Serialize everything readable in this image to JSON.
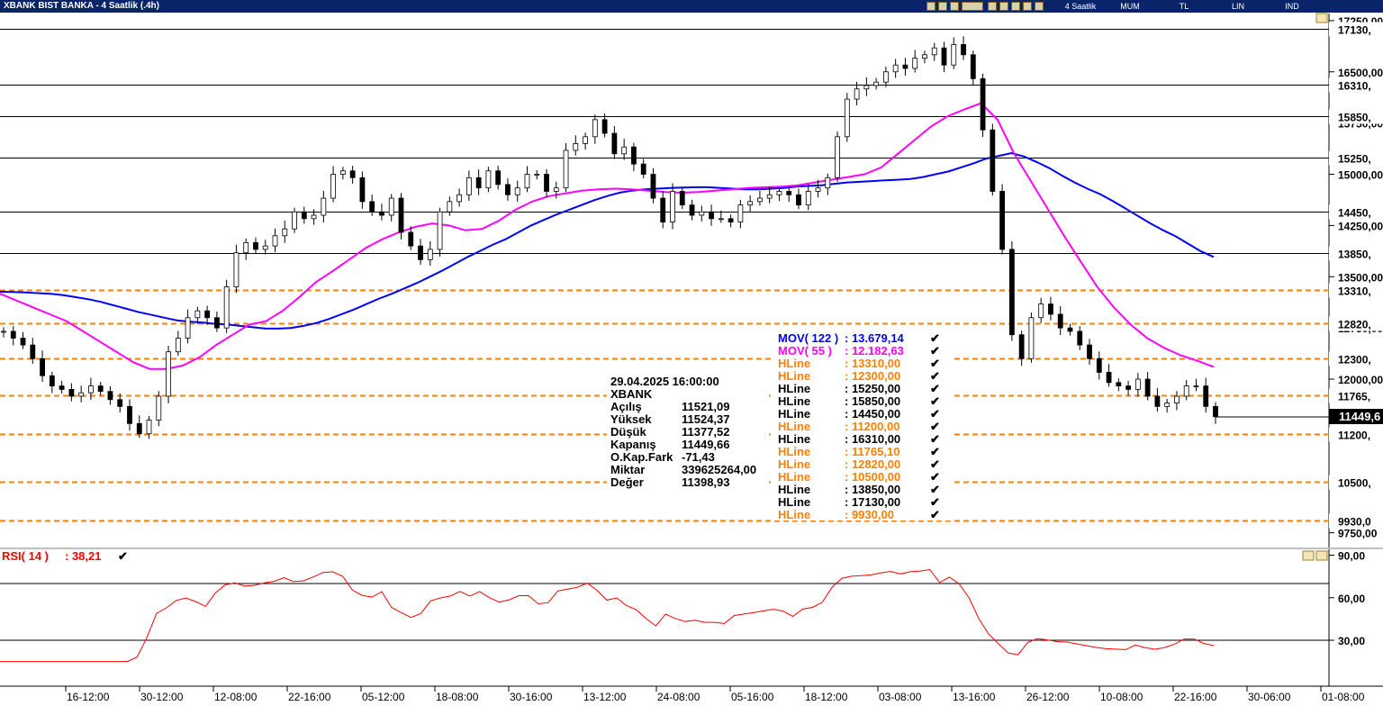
{
  "window": {
    "title": "XBANK BIST BANKA - 4 Saatlik (.4h)",
    "toolbar_labels": [
      "4 Saatlik",
      "MUM",
      "TL",
      "LIN",
      "IND"
    ]
  },
  "info_box": {
    "datetime": "29.04.2025  16:00:00",
    "symbol": "XBANK",
    "rows": [
      {
        "label": "Açılış",
        "value": "11521,09"
      },
      {
        "label": "Yüksek",
        "value": "11524,37"
      },
      {
        "label": "Düşük",
        "value": "11377,52"
      },
      {
        "label": "Kapanış",
        "value": "11449,66"
      },
      {
        "label": "O.Kap.Fark",
        "value": "-71,43"
      },
      {
        "label": "Miktar",
        "value": "339625264,00"
      },
      {
        "label": "Değer",
        "value": "11398,93"
      }
    ]
  },
  "legend": [
    {
      "name": "MOV( 122 )",
      "value": ": 13.679,14",
      "color": "#0000ff"
    },
    {
      "name": "MOV( 55 )",
      "value": ": 12.182,63",
      "color": "#ff00ff"
    },
    {
      "name": "HLine",
      "value": ": 13310,00",
      "color": "#ff8000"
    },
    {
      "name": "HLine",
      "value": ": 12300,00",
      "color": "#ff8000"
    },
    {
      "name": "HLine",
      "value": ": 15250,00",
      "color": "#000000"
    },
    {
      "name": "HLine",
      "value": ": 15850,00",
      "color": "#000000"
    },
    {
      "name": "HLine",
      "value": ": 14450,00",
      "color": "#000000"
    },
    {
      "name": "HLine",
      "value": ": 11200,00",
      "color": "#ff8000"
    },
    {
      "name": "HLine",
      "value": ": 16310,00",
      "color": "#000000"
    },
    {
      "name": "HLine",
      "value": ": 11765,10",
      "color": "#ff8000"
    },
    {
      "name": "HLine",
      "value": ": 12820,00",
      "color": "#ff8000"
    },
    {
      "name": "HLine",
      "value": ": 10500,00",
      "color": "#ff8000"
    },
    {
      "name": "HLine",
      "value": ": 13850,00",
      "color": "#000000"
    },
    {
      "name": "HLine",
      "value": ": 17130,00",
      "color": "#000000"
    },
    {
      "name": "HLine",
      "value": ": 9930,00",
      "color": "#ff8000"
    }
  ],
  "rsi": {
    "label": "RSI( 14 )",
    "value": ": 38,21",
    "color": "#ff0000"
  },
  "chart_data": {
    "type": "candlestick",
    "price_ticks": [
      "17250,00",
      "16500,00",
      "15750,00",
      "15000,00",
      "14250,00",
      "13500,00",
      "12750,00",
      "12000,00",
      "9750,00"
    ],
    "rsi_ticks": [
      "90,00",
      "60,00",
      "30,00"
    ],
    "x_ticks": [
      "16-12:00",
      "30-12:00",
      "12-08:00",
      "22-16:00",
      "05-12:00",
      "18-08:00",
      "30-16:00",
      "13-12:00",
      "24-08:00",
      "05-16:00",
      "18-12:00",
      "03-08:00",
      "13-16:00",
      "26-12:00",
      "10-08:00",
      "22-16:00",
      "30-06:00",
      "01-08:00"
    ],
    "hlines": [
      {
        "label": "17130,",
        "value": 17130,
        "color": "#000000",
        "style": "solid"
      },
      {
        "label": "16310,",
        "value": 16310,
        "color": "#000000",
        "style": "solid"
      },
      {
        "label": "15850,",
        "value": 15850,
        "color": "#000000",
        "style": "solid"
      },
      {
        "label": "15250,",
        "value": 15250,
        "color": "#000000",
        "style": "solid"
      },
      {
        "label": "14450,",
        "value": 14450,
        "color": "#000000",
        "style": "solid"
      },
      {
        "label": "13850,",
        "value": 13850,
        "color": "#000000",
        "style": "solid"
      },
      {
        "label": "13310,",
        "value": 13310,
        "color": "#ff8000",
        "style": "dashed"
      },
      {
        "label": "12820,",
        "value": 12820,
        "color": "#ff8000",
        "style": "dashed"
      },
      {
        "label": "12300,",
        "value": 12300,
        "color": "#ff8000",
        "style": "dashed"
      },
      {
        "label": "11765,",
        "value": 11765.1,
        "color": "#ff8000",
        "style": "dashed"
      },
      {
        "label": "11200,",
        "value": 11200,
        "color": "#ff8000",
        "style": "dashed"
      },
      {
        "label": "10500,",
        "value": 10500,
        "color": "#ff8000",
        "style": "dashed"
      },
      {
        "label": "9930,0",
        "value": 9930,
        "color": "#ff8000",
        "style": "dashed"
      }
    ],
    "last_price": {
      "label": "11449,6",
      "value": 11449.66
    },
    "rsi_levels": [
      70,
      30
    ],
    "close_series": [
      12700,
      12600,
      12500,
      12300,
      12050,
      11900,
      11850,
      11750,
      11800,
      11900,
      11820,
      11700,
      11600,
      11350,
      11200,
      11400,
      11750,
      12400,
      12600,
      12900,
      13000,
      12900,
      12750,
      13350,
      13850,
      14000,
      13900,
      13950,
      14100,
      14200,
      14450,
      14350,
      14400,
      14650,
      15000,
      15050,
      14950,
      14600,
      14450,
      14400,
      14650,
      14150,
      13950,
      13750,
      13900,
      14450,
      14600,
      14700,
      14950,
      14800,
      15050,
      14850,
      14700,
      14800,
      15000,
      15000,
      14750,
      14800,
      15350,
      15450,
      15550,
      15800,
      15600,
      15300,
      15400,
      15150,
      15000,
      14650,
      14300,
      14750,
      14550,
      14400,
      14450,
      14350,
      14350,
      14300,
      14550,
      14600,
      14650,
      14700,
      14750,
      14700,
      14550,
      14750,
      14800,
      14950,
      15550,
      16100,
      16250,
      16300,
      16350,
      16500,
      16600,
      16550,
      16700,
      16750,
      16850,
      16600,
      16900,
      16750,
      16400,
      15650,
      14750,
      13900,
      12650,
      12300,
      12900,
      13100,
      12950,
      12750,
      12700,
      12500,
      12300,
      12100,
      11950,
      11900,
      11850,
      12000,
      11750,
      11600,
      11650,
      11750,
      11900,
      11900,
      11600,
      11450
    ],
    "ma122_series": [
      13280,
      13275,
      13270,
      13260,
      13250,
      13230,
      13200,
      13170,
      13130,
      13080,
      13030,
      12980,
      12940,
      12900,
      12860,
      12840,
      12830,
      12810,
      12800,
      12780,
      12760,
      12740,
      12740,
      12750,
      12780,
      12820,
      12880,
      12950,
      13020,
      13100,
      13180,
      13250,
      13330,
      13410,
      13500,
      13590,
      13690,
      13790,
      13880,
      13970,
      14050,
      14150,
      14250,
      14330,
      14410,
      14480,
      14550,
      14620,
      14680,
      14730,
      14760,
      14780,
      14790,
      14800,
      14805,
      14810,
      14810,
      14800,
      14790,
      14780,
      14780,
      14790,
      14800,
      14820,
      14830,
      14840,
      14860,
      14880,
      14890,
      14900,
      14910,
      14920,
      14930,
      14960,
      15000,
      15040,
      15100,
      15160,
      15230,
      15270,
      15310,
      15260,
      15180,
      15090,
      14980,
      14880,
      14790,
      14710,
      14610,
      14500,
      14390,
      14280,
      14180,
      14090,
      13980,
      13870,
      13790
    ],
    "ma55_series": [
      13250,
      13150,
      13050,
      12950,
      12850,
      12700,
      12550,
      12400,
      12250,
      12150,
      12150,
      12200,
      12320,
      12500,
      12650,
      12800,
      12850,
      13000,
      13200,
      13420,
      13580,
      13750,
      13920,
      14050,
      14150,
      14230,
      14280,
      14250,
      14180,
      14200,
      14320,
      14480,
      14600,
      14680,
      14720,
      14760,
      14780,
      14790,
      14780,
      14760,
      14740,
      14730,
      14740,
      14760,
      14780,
      14800,
      14810,
      14820,
      14840,
      14880,
      14920,
      14960,
      15000,
      15100,
      15300,
      15500,
      15700,
      15850,
      15950,
      16040,
      15800,
      15300,
      14900,
      14500,
      14100,
      13720,
      13350,
      13050,
      12800,
      12600,
      12460,
      12350,
      12270,
      12180
    ]
  }
}
